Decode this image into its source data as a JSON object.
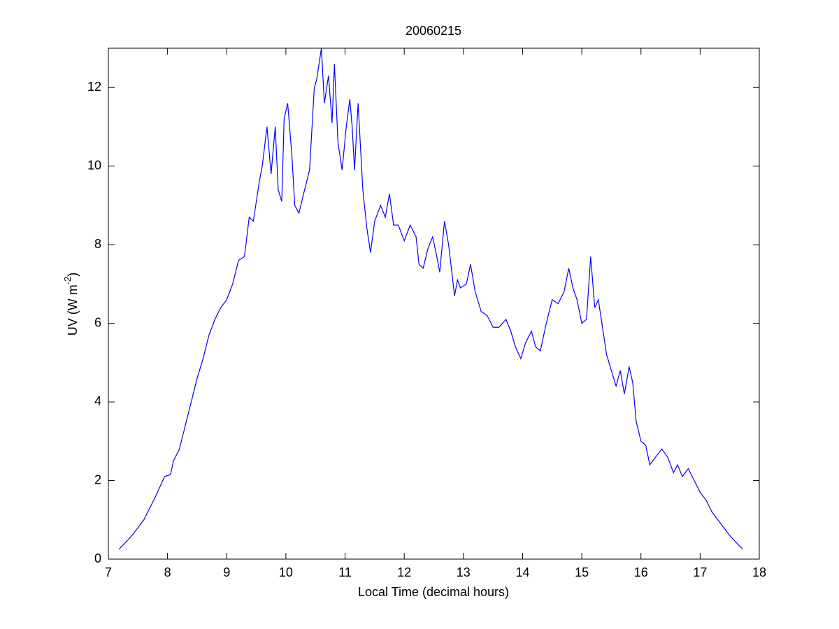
{
  "chart_data": {
    "type": "line",
    "title": "20060215",
    "xlabel": "Local Time (decimal hours)",
    "ylabel": {
      "text": "UV (W m",
      "superscript": "-2",
      "suffix": ")"
    },
    "xlim": [
      7,
      18
    ],
    "xticks": [
      7,
      8,
      9,
      10,
      11,
      12,
      13,
      14,
      15,
      16,
      17,
      18
    ],
    "ylim": [
      0,
      13
    ],
    "yticks": [
      0,
      2,
      4,
      6,
      8,
      10,
      12
    ],
    "grid": false,
    "series": [
      {
        "color": "#0000ff",
        "x": [
          7.18,
          7.4,
          7.6,
          7.8,
          7.95,
          8.05,
          8.1,
          8.2,
          8.3,
          8.4,
          8.5,
          8.6,
          8.7,
          8.8,
          8.9,
          9.0,
          9.1,
          9.2,
          9.3,
          9.38,
          9.45,
          9.55,
          9.6,
          9.68,
          9.75,
          9.82,
          9.87,
          9.93,
          9.97,
          10.03,
          10.1,
          10.15,
          10.22,
          10.3,
          10.4,
          10.48,
          10.52,
          10.56,
          10.6,
          10.65,
          10.72,
          10.78,
          10.82,
          10.88,
          10.95,
          11.02,
          11.08,
          11.12,
          11.16,
          11.22,
          11.3,
          11.37,
          11.43,
          11.5,
          11.6,
          11.68,
          11.75,
          11.82,
          11.9,
          12.0,
          12.1,
          12.2,
          12.25,
          12.32,
          12.4,
          12.48,
          12.55,
          12.6,
          12.68,
          12.75,
          12.85,
          12.9,
          12.95,
          13.05,
          13.12,
          13.2,
          13.3,
          13.4,
          13.5,
          13.6,
          13.72,
          13.8,
          13.88,
          13.97,
          14.05,
          14.15,
          14.22,
          14.3,
          14.4,
          14.5,
          14.6,
          14.7,
          14.78,
          14.85,
          14.92,
          15.0,
          15.08,
          15.15,
          15.22,
          15.28,
          15.35,
          15.42,
          15.5,
          15.58,
          15.65,
          15.72,
          15.8,
          15.86,
          15.92,
          16.0,
          16.08,
          16.15,
          16.25,
          16.35,
          16.45,
          16.55,
          16.62,
          16.7,
          16.8,
          16.9,
          17.0,
          17.1,
          17.2,
          17.35,
          17.5,
          17.72
        ],
        "values": [
          0.25,
          0.6,
          1.0,
          1.6,
          2.1,
          2.15,
          2.5,
          2.8,
          3.4,
          4.0,
          4.6,
          5.1,
          5.7,
          6.1,
          6.4,
          6.6,
          7.0,
          7.6,
          7.7,
          8.7,
          8.6,
          9.6,
          10.0,
          11.0,
          9.8,
          11.0,
          9.4,
          9.1,
          11.2,
          11.6,
          10.3,
          9.0,
          8.8,
          9.3,
          9.9,
          12.0,
          12.2,
          12.6,
          13.0,
          11.6,
          12.3,
          11.1,
          12.6,
          10.6,
          9.9,
          11.0,
          11.7,
          11.0,
          9.9,
          11.6,
          9.4,
          8.4,
          7.8,
          8.6,
          9.0,
          8.7,
          9.3,
          8.5,
          8.5,
          8.1,
          8.5,
          8.2,
          7.5,
          7.4,
          7.9,
          8.2,
          7.7,
          7.3,
          8.6,
          8.0,
          6.7,
          7.1,
          6.9,
          7.0,
          7.5,
          6.8,
          6.3,
          6.2,
          5.9,
          5.9,
          6.1,
          5.8,
          5.4,
          5.1,
          5.5,
          5.8,
          5.4,
          5.3,
          6.0,
          6.6,
          6.5,
          6.8,
          7.4,
          6.9,
          6.6,
          6.0,
          6.1,
          7.7,
          6.4,
          6.6,
          5.9,
          5.2,
          4.8,
          4.4,
          4.8,
          4.2,
          4.9,
          4.5,
          3.5,
          3.0,
          2.9,
          2.4,
          2.6,
          2.8,
          2.6,
          2.2,
          2.4,
          2.1,
          2.3,
          2.0,
          1.7,
          1.5,
          1.2,
          0.9,
          0.6,
          0.25
        ]
      }
    ]
  }
}
